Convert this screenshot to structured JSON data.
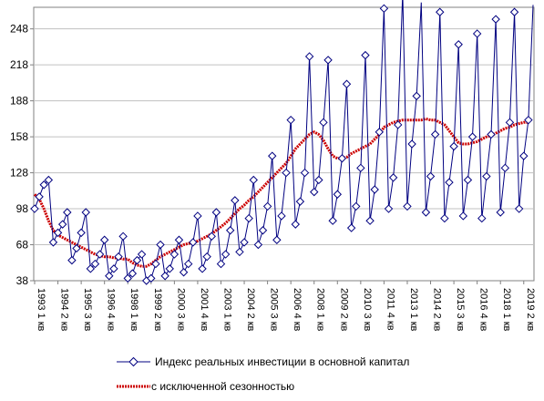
{
  "chart_data": {
    "type": "line",
    "title": "",
    "xlabel": "",
    "ylabel": "",
    "ylim": [
      38,
      266
    ],
    "y_ticks": [
      38,
      68,
      98,
      128,
      158,
      188,
      218,
      248
    ],
    "grid": "horizontal",
    "legend_position": "bottom",
    "x_tick_labels": [
      "1993 1 кв",
      "1994 2 кв",
      "1995 3 кв",
      "1996 4 кв",
      "1998 1 кв",
      "1999 2 кв",
      "2000 3 кв",
      "2001 4 кв",
      "2003 1 кв",
      "2004 2 кв",
      "2005 3 кв",
      "2006 4 кв",
      "2008 1 кв",
      "2009 2 кв",
      "2010 3 кв",
      "2011 4 кв",
      "2013 1 кв",
      "2014 2 кв",
      "2015 3 кв",
      "2016 4 кв",
      "2018 1 кв",
      "2019 2 кв"
    ],
    "series": [
      {
        "name": "Индекс реальных инвестиции в основной капитал",
        "color": "#000080",
        "marker": "diamond",
        "values": [
          98,
          108,
          118,
          122,
          70,
          78,
          85,
          95,
          55,
          65,
          78,
          95,
          48,
          52,
          60,
          72,
          42,
          48,
          58,
          75,
          40,
          44,
          55,
          60,
          38,
          40,
          52,
          68,
          42,
          48,
          60,
          72,
          45,
          52,
          70,
          92,
          48,
          58,
          75,
          95,
          52,
          60,
          80,
          105,
          62,
          70,
          90,
          122,
          68,
          80,
          100,
          142,
          72,
          92,
          128,
          172,
          85,
          104,
          128,
          225,
          112,
          122,
          170,
          222,
          88,
          110,
          140,
          202,
          82,
          100,
          132,
          226,
          88,
          114,
          162,
          265,
          98,
          124,
          168,
          278,
          100,
          152,
          192,
          270,
          95,
          125,
          160,
          262,
          90,
          120,
          150,
          235,
          92,
          122,
          158,
          244,
          90,
          125,
          160,
          256,
          95,
          132,
          170,
          262,
          98,
          142,
          172,
          268
        ],
        "label_chars": {}
      },
      {
        "name": "с исключенной сезонностью",
        "color": "#cc0000",
        "marker": "none",
        "values": [
          110,
          106,
          98,
          88,
          80,
          76,
          74,
          72,
          70,
          68,
          66,
          64,
          62,
          60,
          59,
          58,
          58,
          57,
          57,
          56,
          56,
          53,
          51,
          50,
          50,
          52,
          55,
          58,
          60,
          62,
          64,
          66,
          68,
          69,
          70,
          71,
          73,
          75,
          77,
          80,
          83,
          86,
          90,
          94,
          98,
          101,
          105,
          108,
          112,
          116,
          120,
          124,
          128,
          132,
          136,
          142,
          148,
          152,
          156,
          160,
          162,
          160,
          155,
          148,
          142,
          140,
          140,
          141,
          144,
          146,
          148,
          150,
          152,
          156,
          160,
          166,
          168,
          170,
          171,
          172,
          172,
          172,
          172,
          172,
          173,
          172,
          172,
          170,
          168,
          163,
          158,
          153,
          152,
          152,
          153,
          154,
          156,
          158,
          159,
          161,
          163,
          165,
          166,
          168,
          169,
          170,
          170
        ]
      }
    ]
  }
}
